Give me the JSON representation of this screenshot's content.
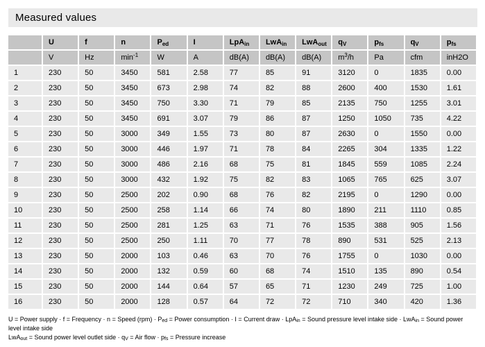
{
  "title": "Measured values",
  "colors": {
    "title_bar_bg": "#e9e9e9",
    "header_cell_bg": "#c5c5c5",
    "data_cell_bg": "#e9e9e9",
    "text": "#000000",
    "page_bg": "#ffffff"
  },
  "table": {
    "columns": [
      {
        "name": "row-index",
        "label": [],
        "unit": []
      },
      {
        "name": "u",
        "label": [
          {
            "t": "U"
          }
        ],
        "unit": [
          {
            "t": "V"
          }
        ]
      },
      {
        "name": "f",
        "label": [
          {
            "t": "f"
          }
        ],
        "unit": [
          {
            "t": "Hz"
          }
        ]
      },
      {
        "name": "n",
        "label": [
          {
            "t": "n"
          }
        ],
        "unit": [
          {
            "t": "min"
          },
          {
            "t": "-1",
            "s": "sup"
          }
        ]
      },
      {
        "name": "ped",
        "label": [
          {
            "t": "P"
          },
          {
            "t": "ed",
            "s": "sub"
          }
        ],
        "unit": [
          {
            "t": "W"
          }
        ]
      },
      {
        "name": "i",
        "label": [
          {
            "t": "I"
          }
        ],
        "unit": [
          {
            "t": "A"
          }
        ]
      },
      {
        "name": "lpa-in",
        "label": [
          {
            "t": "LpA"
          },
          {
            "t": "in",
            "s": "sub"
          }
        ],
        "unit": [
          {
            "t": "dB(A)"
          }
        ]
      },
      {
        "name": "lwa-in",
        "label": [
          {
            "t": "LwA"
          },
          {
            "t": "in",
            "s": "sub"
          }
        ],
        "unit": [
          {
            "t": "dB(A)"
          }
        ]
      },
      {
        "name": "lwa-out",
        "label": [
          {
            "t": "LwA"
          },
          {
            "t": "out",
            "s": "sub"
          }
        ],
        "unit": [
          {
            "t": "dB(A)"
          }
        ]
      },
      {
        "name": "qv-m3h",
        "label": [
          {
            "t": "q"
          },
          {
            "t": "V",
            "s": "sub"
          }
        ],
        "unit": [
          {
            "t": "m"
          },
          {
            "t": "3",
            "s": "sup"
          },
          {
            "t": "/h"
          }
        ]
      },
      {
        "name": "pfs-pa",
        "label": [
          {
            "t": "p"
          },
          {
            "t": "fs",
            "s": "sub"
          }
        ],
        "unit": [
          {
            "t": "Pa"
          }
        ]
      },
      {
        "name": "qv-cfm",
        "label": [
          {
            "t": "q"
          },
          {
            "t": "V",
            "s": "sub"
          }
        ],
        "unit": [
          {
            "t": "cfm"
          }
        ]
      },
      {
        "name": "pfs-inh2o",
        "label": [
          {
            "t": "p"
          },
          {
            "t": "fs",
            "s": "sub"
          }
        ],
        "unit": [
          {
            "t": "inH2O"
          }
        ]
      }
    ],
    "rows": [
      [
        "1",
        "230",
        "50",
        "3450",
        "581",
        "2.58",
        "77",
        "85",
        "91",
        "3120",
        "0",
        "1835",
        "0.00"
      ],
      [
        "2",
        "230",
        "50",
        "3450",
        "673",
        "2.98",
        "74",
        "82",
        "88",
        "2600",
        "400",
        "1530",
        "1.61"
      ],
      [
        "3",
        "230",
        "50",
        "3450",
        "750",
        "3.30",
        "71",
        "79",
        "85",
        "2135",
        "750",
        "1255",
        "3.01"
      ],
      [
        "4",
        "230",
        "50",
        "3450",
        "691",
        "3.07",
        "79",
        "86",
        "87",
        "1250",
        "1050",
        "735",
        "4.22"
      ],
      [
        "5",
        "230",
        "50",
        "3000",
        "349",
        "1.55",
        "73",
        "80",
        "87",
        "2630",
        "0",
        "1550",
        "0.00"
      ],
      [
        "6",
        "230",
        "50",
        "3000",
        "446",
        "1.97",
        "71",
        "78",
        "84",
        "2265",
        "304",
        "1335",
        "1.22"
      ],
      [
        "7",
        "230",
        "50",
        "3000",
        "486",
        "2.16",
        "68",
        "75",
        "81",
        "1845",
        "559",
        "1085",
        "2.24"
      ],
      [
        "8",
        "230",
        "50",
        "3000",
        "432",
        "1.92",
        "75",
        "82",
        "83",
        "1065",
        "765",
        "625",
        "3.07"
      ],
      [
        "9",
        "230",
        "50",
        "2500",
        "202",
        "0.90",
        "68",
        "76",
        "82",
        "2195",
        "0",
        "1290",
        "0.00"
      ],
      [
        "10",
        "230",
        "50",
        "2500",
        "258",
        "1.14",
        "66",
        "74",
        "80",
        "1890",
        "211",
        "1110",
        "0.85"
      ],
      [
        "11",
        "230",
        "50",
        "2500",
        "281",
        "1.25",
        "63",
        "71",
        "76",
        "1535",
        "388",
        "905",
        "1.56"
      ],
      [
        "12",
        "230",
        "50",
        "2500",
        "250",
        "1.11",
        "70",
        "77",
        "78",
        "890",
        "531",
        "525",
        "2.13"
      ],
      [
        "13",
        "230",
        "50",
        "2000",
        "103",
        "0.46",
        "63",
        "70",
        "76",
        "1755",
        "0",
        "1030",
        "0.00"
      ],
      [
        "14",
        "230",
        "50",
        "2000",
        "132",
        "0.59",
        "60",
        "68",
        "74",
        "1510",
        "135",
        "890",
        "0.54"
      ],
      [
        "15",
        "230",
        "50",
        "2000",
        "144",
        "0.64",
        "57",
        "65",
        "71",
        "1230",
        "249",
        "725",
        "1.00"
      ],
      [
        "16",
        "230",
        "50",
        "2000",
        "128",
        "0.57",
        "64",
        "72",
        "72",
        "710",
        "340",
        "420",
        "1.36"
      ]
    ]
  },
  "legend": {
    "line1": [
      {
        "t": "U = Power supply · f = Frequency · n = Speed (rpm) · P"
      },
      {
        "t": "ed",
        "s": "sub"
      },
      {
        "t": " = Power consumption · I = Current draw · LpA"
      },
      {
        "t": "in",
        "s": "sub"
      },
      {
        "t": " = Sound pressure level intake side · LwA"
      },
      {
        "t": "in",
        "s": "sub"
      },
      {
        "t": " = Sound power level intake side"
      }
    ],
    "line2": [
      {
        "t": "LwA"
      },
      {
        "t": "out",
        "s": "sub"
      },
      {
        "t": " = Sound power level outlet side · q"
      },
      {
        "t": "V",
        "s": "sub"
      },
      {
        "t": " = Air flow · p"
      },
      {
        "t": "fs",
        "s": "sub"
      },
      {
        "t": " = Pressure increase"
      }
    ]
  }
}
